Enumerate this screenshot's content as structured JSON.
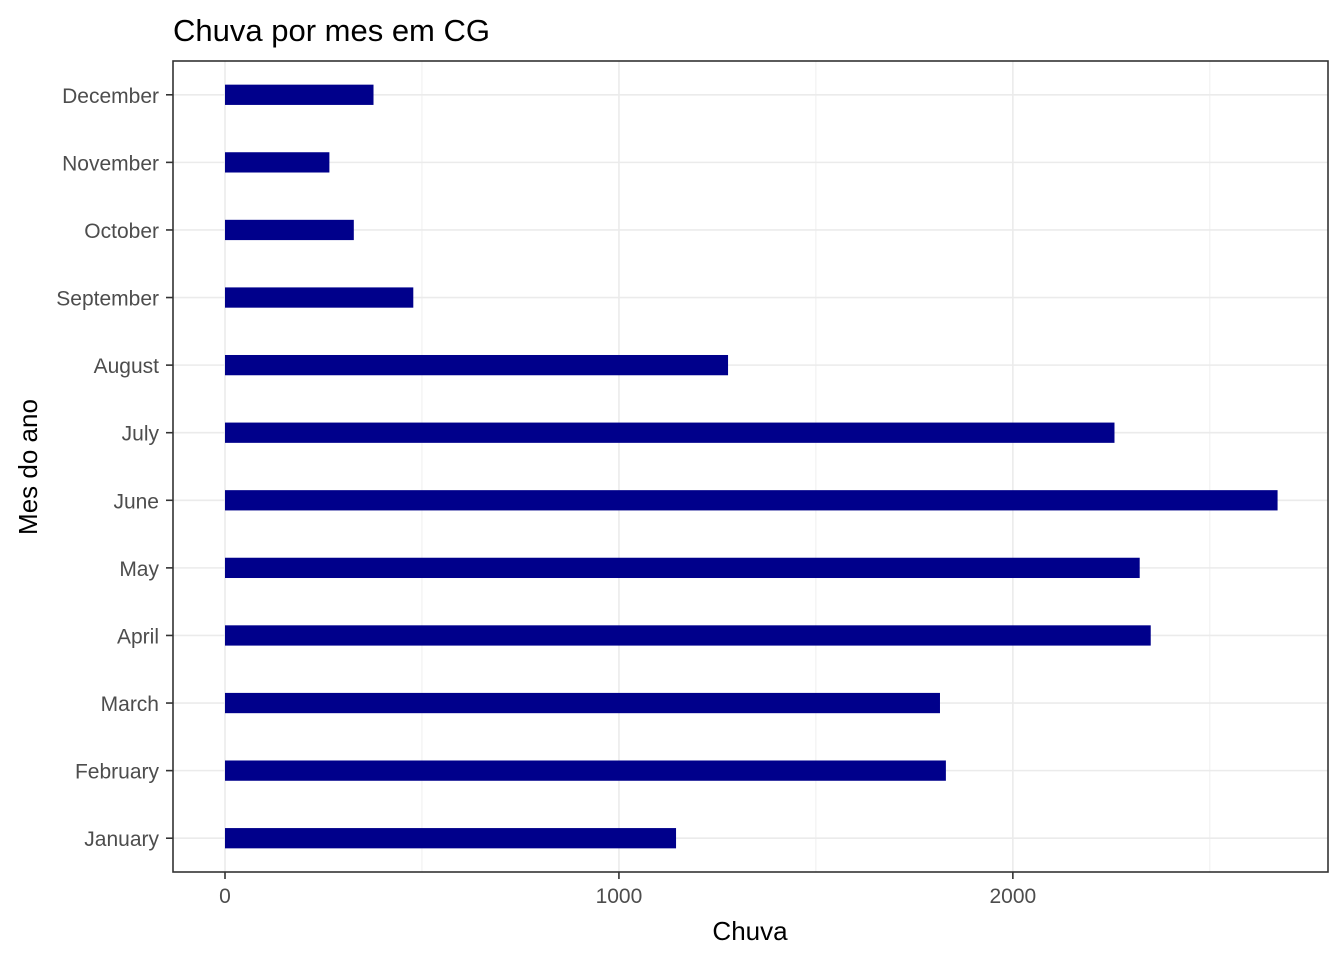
{
  "chart_data": {
    "type": "bar",
    "orientation": "horizontal",
    "title": "Chuva por mes em CG",
    "xlabel": "Chuva",
    "ylabel": "Mes do ano",
    "categories": [
      "January",
      "February",
      "March",
      "April",
      "May",
      "June",
      "July",
      "August",
      "September",
      "October",
      "November",
      "December"
    ],
    "values": [
      1145,
      1830,
      1815,
      2350,
      2322,
      2672,
      2258,
      1277,
      478,
      327,
      265,
      377
    ],
    "xlim": [
      -132,
      2800
    ],
    "x_ticks": [
      0,
      1000,
      2000
    ],
    "x_minor_ticks": [
      500,
      1500,
      2500
    ],
    "grid": true,
    "bar_color": "#00008b"
  }
}
